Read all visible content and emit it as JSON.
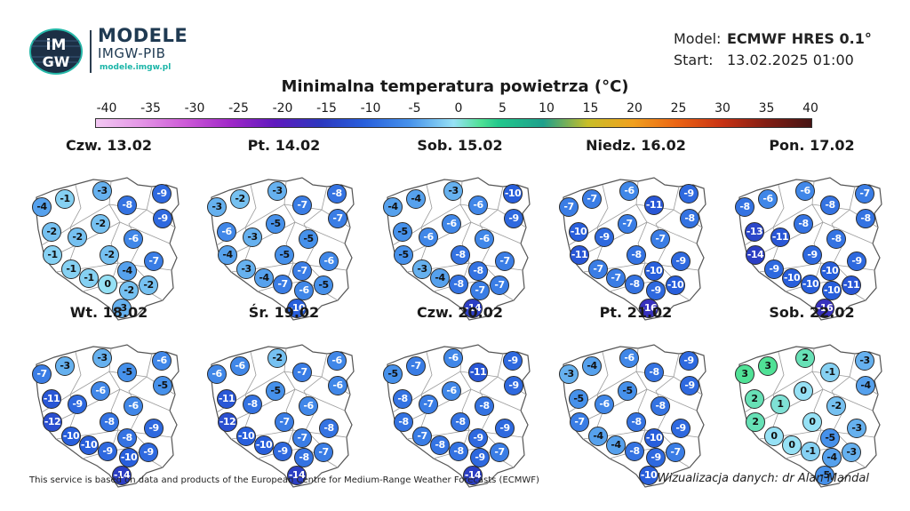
{
  "brand": {
    "title": "MODELE",
    "subtitle": "IMGW-PIB",
    "url": "modele.imgw.pl",
    "logo_text_top": "iM",
    "logo_text_bottom": "GW"
  },
  "meta": {
    "model_label": "Model:",
    "model_value": "ECMWF HRES 0.1°",
    "start_label": "Start:",
    "start_value": "13.02.2025 01:00"
  },
  "title": "Minimalna temperatura powietrza (°C)",
  "colorbar": {
    "ticks": [
      "-40",
      "-35",
      "-30",
      "-25",
      "-20",
      "-15",
      "-10",
      "-5",
      "0",
      "5",
      "10",
      "15",
      "20",
      "25",
      "30",
      "35",
      "40"
    ]
  },
  "footer": "This service is based on data and products of the European Centre for Medium-Range Weather Forecasts (ECMWF)",
  "credit": "Wizualizacja danych: dr Alan Mandal",
  "panels": [
    {
      "title": "Czw. 13.02",
      "values": [
        -4,
        -1,
        -3,
        -8,
        -9,
        -2,
        -2,
        -2,
        -9,
        -6,
        -1,
        -2,
        -7,
        -1,
        -4,
        -1,
        0,
        -2,
        -2,
        -3
      ]
    },
    {
      "title": "Pt. 14.02",
      "values": [
        -3,
        -2,
        -3,
        -7,
        -8,
        -6,
        -3,
        -5,
        -7,
        -5,
        -4,
        -5,
        -6,
        -3,
        -7,
        -4,
        -7,
        -6,
        -5,
        -10
      ]
    },
    {
      "title": "Sob. 15.02",
      "values": [
        -4,
        -4,
        -3,
        -6,
        -10,
        -5,
        -6,
        -6,
        -9,
        -6,
        -5,
        -8,
        -7,
        -3,
        -8,
        -4,
        -8,
        -7,
        -7,
        -14
      ]
    },
    {
      "title": "Niedz. 16.02",
      "values": [
        -7,
        -7,
        -6,
        -11,
        -9,
        -10,
        -9,
        -7,
        -8,
        -7,
        -11,
        -8,
        -9,
        -7,
        -10,
        -7,
        -8,
        -9,
        -10,
        -16
      ]
    },
    {
      "title": "Pon. 17.02",
      "values": [
        -8,
        -6,
        -6,
        -8,
        -7,
        -13,
        -11,
        -8,
        -8,
        -8,
        -14,
        -9,
        -9,
        -9,
        -10,
        -10,
        -10,
        -10,
        -11,
        -16
      ]
    },
    {
      "title": "Wt. 18.02",
      "values": [
        -7,
        -3,
        -3,
        -5,
        -6,
        -11,
        -9,
        -6,
        -5,
        -6,
        -12,
        -8,
        -9,
        -10,
        -8,
        -10,
        -9,
        -10,
        -9,
        -14
      ]
    },
    {
      "title": "Śr. 19.02",
      "values": [
        -6,
        -6,
        -2,
        -7,
        -6,
        -11,
        -8,
        -5,
        -6,
        -6,
        -12,
        -7,
        -8,
        -10,
        -7,
        -10,
        -9,
        -8,
        -7,
        -14
      ]
    },
    {
      "title": "Czw. 20.02",
      "values": [
        -5,
        -7,
        -6,
        -11,
        -9,
        -8,
        -7,
        -6,
        -9,
        -8,
        -8,
        -8,
        -9,
        -7,
        -9,
        -8,
        -8,
        -9,
        -7,
        -14
      ]
    },
    {
      "title": "Pt. 21.02",
      "values": [
        -3,
        -4,
        -6,
        -8,
        -9,
        -5,
        -6,
        -5,
        -9,
        -8,
        -7,
        -8,
        -9,
        -4,
        -10,
        -4,
        -8,
        -9,
        -7,
        -10
      ]
    },
    {
      "title": "Sob. 22.02",
      "values": [
        3,
        3,
        2,
        -1,
        -3,
        2,
        1,
        0,
        -4,
        -2,
        2,
        0,
        -3,
        0,
        -5,
        0,
        -1,
        -4,
        -3,
        -5
      ]
    }
  ]
}
